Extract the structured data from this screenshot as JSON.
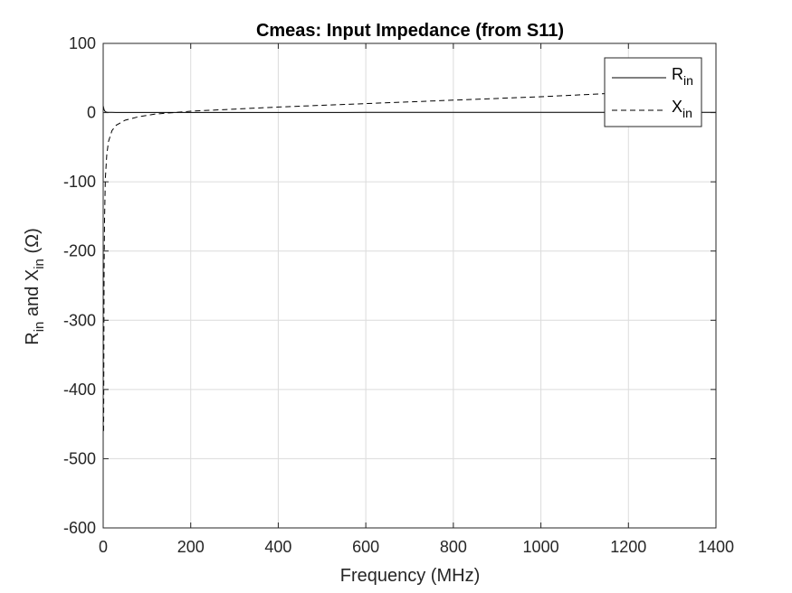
{
  "chart_data": {
    "type": "line",
    "title": "Cmeas: Input Impedance (from S11)",
    "xlabel": "Frequency (MHz)",
    "ylabel": {
      "parts": [
        "R",
        "in",
        " and X",
        "in",
        " (Ω)"
      ]
    },
    "xlim": [
      0,
      1400
    ],
    "ylim": [
      -600,
      100
    ],
    "xticks": [
      0,
      200,
      400,
      600,
      800,
      1000,
      1200,
      1400
    ],
    "yticks": [
      -600,
      -500,
      -400,
      -300,
      -200,
      -100,
      0,
      100
    ],
    "grid": true,
    "legend_position": "top-right",
    "series": [
      {
        "name": {
          "main": "R",
          "sub": "in"
        },
        "style": "solid",
        "color": "#000000",
        "x": [
          0,
          2,
          5,
          10,
          20,
          50,
          100,
          200,
          400,
          600,
          800,
          1000,
          1200,
          1400
        ],
        "y": [
          10,
          4,
          1,
          0.5,
          0.3,
          0.2,
          0.2,
          0.2,
          0.2,
          0.3,
          0.3,
          0.3,
          0.3,
          0.3
        ]
      },
      {
        "name": {
          "main": "X",
          "sub": "in"
        },
        "style": "dashed",
        "color": "#000000",
        "x": [
          1,
          2,
          3,
          5,
          8,
          12,
          20,
          30,
          50,
          80,
          120,
          160,
          200,
          300,
          400,
          600,
          800,
          1000,
          1200,
          1300
        ],
        "y": [
          -460,
          -230,
          -155,
          -95,
          -62,
          -42,
          -26,
          -18,
          -11,
          -6,
          -2,
          0,
          2,
          5,
          8,
          13,
          18,
          23,
          29,
          32
        ]
      }
    ]
  }
}
